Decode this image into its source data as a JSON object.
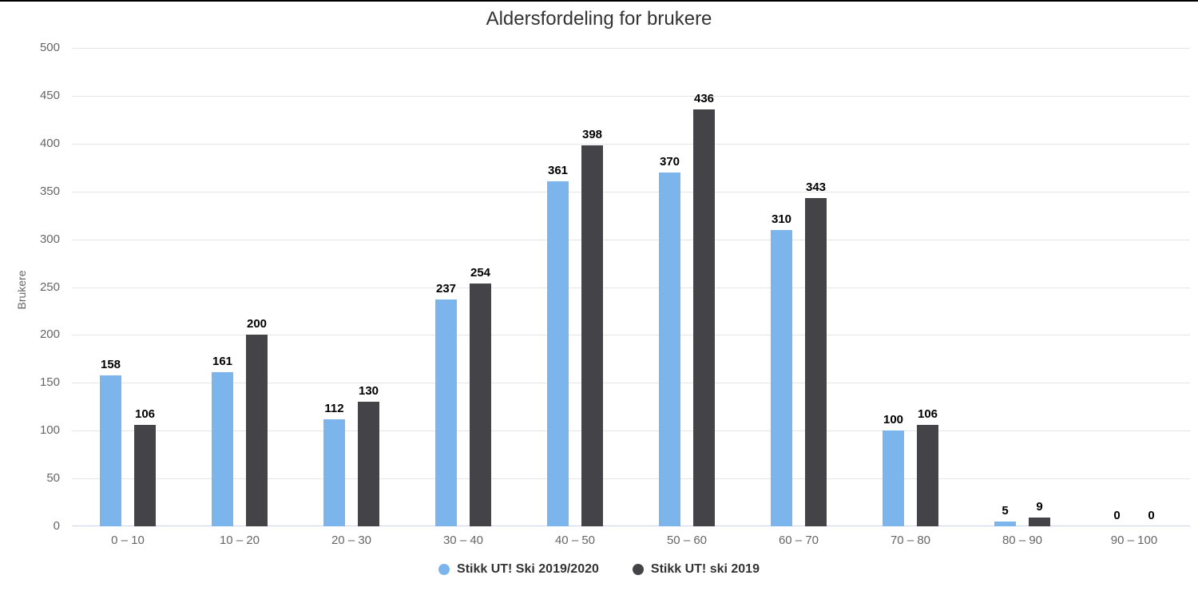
{
  "title": "Aldersfordeling for brukere",
  "colors": {
    "series1": "#7cb5ec",
    "series2": "#434348",
    "grid": "#e6e6e6",
    "axis_line": "#ccd6eb",
    "tick_text": "#666666",
    "data_label_text": "#000000",
    "legend_text": "#333333",
    "title_text": "#333333",
    "top_border": "#000000",
    "background": "#ffffff"
  },
  "chart_data": {
    "type": "bar",
    "title": "Aldersfordeling for brukere",
    "xlabel": "",
    "ylabel": "Brukere",
    "ylim": [
      0,
      500
    ],
    "ytick_step": 50,
    "yticks": [
      0,
      50,
      100,
      150,
      200,
      250,
      300,
      350,
      400,
      450,
      500
    ],
    "grid": true,
    "data_labels": true,
    "legend_position": "bottom",
    "categories": [
      "0 – 10",
      "10 – 20",
      "20 – 30",
      "30 – 40",
      "40 – 50",
      "50 – 60",
      "60 – 70",
      "70 – 80",
      "80 – 90",
      "90 – 100"
    ],
    "series": [
      {
        "name": "Stikk UT! Ski 2019/2020",
        "color": "#7cb5ec",
        "values": [
          158,
          161,
          112,
          237,
          361,
          370,
          310,
          100,
          5,
          0
        ]
      },
      {
        "name": "Stikk UT! ski 2019",
        "color": "#434348",
        "values": [
          106,
          200,
          130,
          254,
          398,
          436,
          343,
          106,
          9,
          0
        ]
      }
    ]
  }
}
